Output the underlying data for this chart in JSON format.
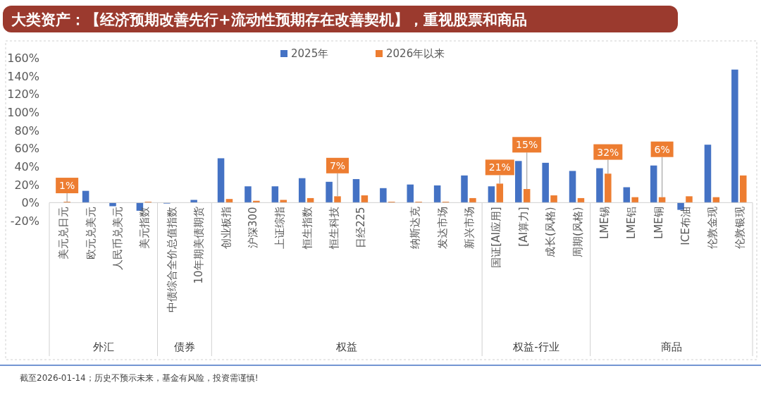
{
  "chart_data": {
    "type": "bar",
    "title": "大类资产：【经济预期改善先行+流动性预期存在改善契机】，重视股票和商品",
    "categories": [
      "美元兑日元",
      "欧元兑美元",
      "人民币兑美元",
      "美元指数",
      "中债综合全价总值指数",
      "10年期美债期货",
      "创业板指",
      "沪深300",
      "上证综指",
      "恒生指数",
      "恒生科技",
      "日经225",
      null,
      "纳斯达克",
      "发达市场",
      "新兴市场",
      "国证[AI应用]",
      "[AI算力]",
      "成长(风格)",
      "周期(风格)",
      "LME锡",
      "LME铝",
      "LME铜",
      "ICE布油",
      "伦敦金现",
      "伦敦银现"
    ],
    "series": [
      {
        "name": "2025年",
        "color": "#4472c4",
        "values": [
          0,
          13,
          -4,
          -9,
          -1,
          3,
          49,
          18,
          18,
          27,
          23,
          26,
          16,
          20,
          19,
          30,
          18,
          46,
          44,
          35,
          38,
          17,
          41,
          -8,
          64,
          147
        ]
      },
      {
        "name": "2026年以来",
        "color": "#ed7d31",
        "values": [
          1,
          0,
          0,
          1,
          0,
          0,
          4,
          2,
          3,
          5,
          7,
          8,
          1,
          1,
          1,
          5,
          21,
          15,
          8,
          5,
          32,
          6,
          6,
          7,
          6,
          30
        ],
        "value_labels": [
          "1%",
          null,
          null,
          null,
          null,
          null,
          null,
          null,
          null,
          null,
          "7%",
          null,
          null,
          null,
          null,
          null,
          "21%",
          "15%",
          null,
          null,
          "32%",
          null,
          "6%",
          null,
          null,
          null
        ]
      }
    ],
    "ylim": [
      -20,
      160
    ],
    "yticks": [
      {
        "value": -20,
        "label": "-20%"
      },
      {
        "value": 0,
        "label": "0%"
      },
      {
        "value": 20,
        "label": "20%"
      },
      {
        "value": 40,
        "label": "40%"
      },
      {
        "value": 60,
        "label": "60%"
      },
      {
        "value": 80,
        "label": "80%"
      },
      {
        "value": 100,
        "label": "100%"
      },
      {
        "value": 120,
        "label": "120%"
      },
      {
        "value": 140,
        "label": "140%"
      },
      {
        "value": 160,
        "label": "160%"
      }
    ],
    "grid": false,
    "legend": "top",
    "annotations": [
      "外汇",
      "债券",
      "权益",
      "权益-行业",
      "商品",
      "截至2026-01-14；历史不预示未来，基金有风险，投资需谨慎!"
    ]
  }
}
